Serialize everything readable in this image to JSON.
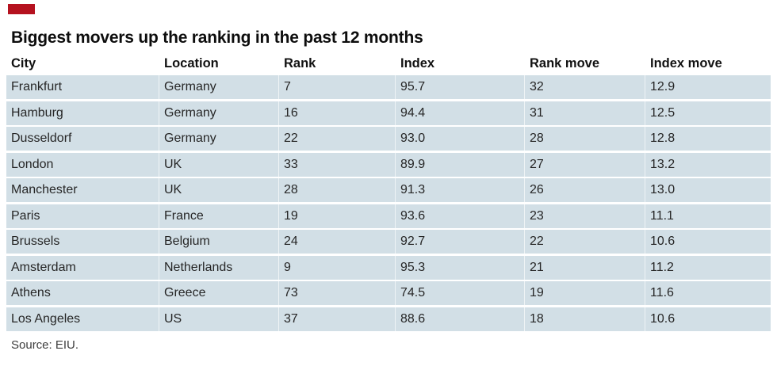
{
  "page": {
    "brand_color": "#b5121f",
    "row_color": "#d2dfe6",
    "title": "Biggest movers up the ranking in the past 12 months",
    "source": "Source: EIU."
  },
  "chart_data": {
    "type": "table",
    "title": "Biggest movers up the ranking in the past 12 months",
    "columns": [
      "City",
      "Location",
      "Rank",
      "Index",
      "Rank move",
      "Index move"
    ],
    "rows": [
      [
        "Frankfurt",
        "Germany",
        "7",
        "95.7",
        "32",
        "12.9"
      ],
      [
        "Hamburg",
        "Germany",
        "16",
        "94.4",
        "31",
        "12.5"
      ],
      [
        "Dusseldorf",
        "Germany",
        "22",
        "93.0",
        "28",
        "12.8"
      ],
      [
        "London",
        "UK",
        "33",
        "89.9",
        "27",
        "13.2"
      ],
      [
        "Manchester",
        "UK",
        "28",
        "91.3",
        "26",
        "13.0"
      ],
      [
        "Paris",
        "France",
        "19",
        "93.6",
        "23",
        "11.1"
      ],
      [
        "Brussels",
        "Belgium",
        "24",
        "92.7",
        "22",
        "10.6"
      ],
      [
        "Amsterdam",
        "Netherlands",
        "9",
        "95.3",
        "21",
        "11.2"
      ],
      [
        "Athens",
        "Greece",
        "73",
        "74.5",
        "19",
        "11.6"
      ],
      [
        "Los Angeles",
        "US",
        "37",
        "88.6",
        "18",
        "10.6"
      ]
    ],
    "source": "Source: EIU.",
    "layout": {
      "legend": "none",
      "grid": "row-stripes"
    }
  }
}
